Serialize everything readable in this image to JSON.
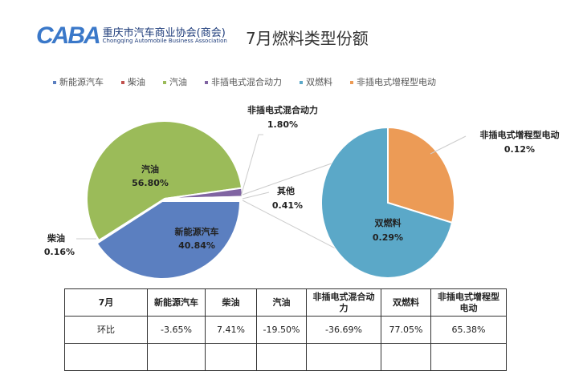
{
  "header": {
    "logo_mark": "CABA",
    "logo_cn": "重庆市汽车商业协会(商会)",
    "logo_en": "Chongqing Automobile Business Association",
    "title": "7月燃料类型份额"
  },
  "chart_data": {
    "type": "pie",
    "title": "7月燃料类型份额",
    "legend_position": "top",
    "legend": [
      "新能源汽车",
      "柴油",
      "汽油",
      "非插电式混合动力",
      "双燃料",
      "非插电式增程型电动"
    ],
    "colors": {
      "新能源汽车": "#5b7fc0",
      "柴油": "#c0504d",
      "汽油": "#9bbb59",
      "非插电式混合动力": "#8064a2",
      "双燃料": "#5ba8c8",
      "非插电式增程型电动": "#ec9b56"
    },
    "main_pie": [
      {
        "label": "新能源汽车",
        "value": 40.84,
        "display": "40.84%"
      },
      {
        "label": "柴油",
        "value": 0.16,
        "display": "0.16%"
      },
      {
        "label": "汽油",
        "value": 56.8,
        "display": "56.80%"
      },
      {
        "label": "非插电式混合动力",
        "value": 1.8,
        "display": "1.80%"
      },
      {
        "label": "其他",
        "value": 0.41,
        "display": "0.41%"
      }
    ],
    "secondary_pie": [
      {
        "label": "非插电式增程型电动",
        "value": 0.12,
        "display": "0.12%"
      },
      {
        "label": "双燃料",
        "value": 0.29,
        "display": "0.29%"
      }
    ]
  },
  "table": {
    "headers": [
      "7月",
      "新能源汽车",
      "柴油",
      "汽油",
      "非插电式混合动力",
      "双燃料",
      "非插电式增程型电动"
    ],
    "rows": [
      [
        "环比",
        "-3.65%",
        "7.41%",
        "-19.50%",
        "-36.69%",
        "77.05%",
        "65.38%"
      ]
    ]
  }
}
